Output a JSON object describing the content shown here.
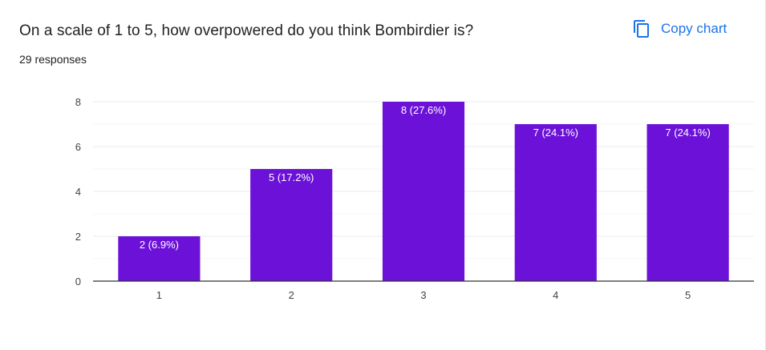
{
  "header": {
    "question": "On a scale of 1 to 5, how overpowered do you think Bombirdier is?",
    "responses": "29 responses",
    "copy_label": "Copy chart",
    "copy_icon": "copy-icon"
  },
  "colors": {
    "bar": "#6c12d8",
    "accent": "#1a73e8",
    "grid": "#ebebeb",
    "axis": "#333333"
  },
  "chart_data": {
    "type": "bar",
    "categories": [
      "1",
      "2",
      "3",
      "4",
      "5"
    ],
    "values": [
      2,
      5,
      8,
      7,
      7
    ],
    "data_labels": [
      "2 (6.9%)",
      "5 (17.2%)",
      "8 (27.6%)",
      "7 (24.1%)",
      "7 (24.1%)"
    ],
    "yticks": [
      0,
      2,
      4,
      6,
      8
    ],
    "ylim": [
      0,
      8
    ],
    "grid": true,
    "title": "On a scale of 1 to 5, how overpowered do you think Bombirdier is?",
    "xlabel": "",
    "ylabel": ""
  }
}
